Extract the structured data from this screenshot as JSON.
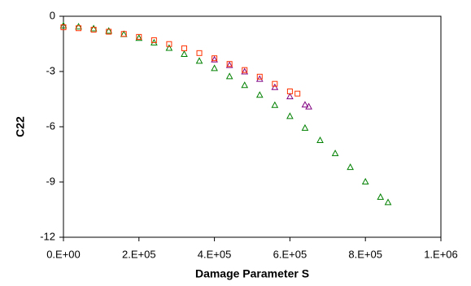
{
  "chart_data": {
    "type": "scatter",
    "x_label": "Damage Parameter S",
    "y_label": "C22",
    "xlim": [
      0,
      1000000
    ],
    "ylim": [
      -12,
      0
    ],
    "xticks": [
      {
        "value": 0,
        "label": "0.E+00"
      },
      {
        "value": 200000,
        "label": "2.E+05"
      },
      {
        "value": 400000,
        "label": "4.E+05"
      },
      {
        "value": 600000,
        "label": "6.E+05"
      },
      {
        "value": 800000,
        "label": "8.E+05"
      },
      {
        "value": 1000000,
        "label": "1.E+06"
      }
    ],
    "yticks": [
      0,
      -3,
      -6,
      -9,
      -12
    ],
    "series": [
      {
        "color": "#008000",
        "marker": "triangle",
        "x": [
          0,
          40000,
          80000,
          120000,
          160000,
          200000,
          240000,
          280000,
          320000,
          360000,
          400000,
          440000,
          480000,
          520000,
          560000,
          600000,
          640000,
          680000,
          720000,
          760000,
          800000,
          840000,
          860000
        ],
        "values": [
          -0.5,
          -0.56,
          -0.66,
          -0.79,
          -0.97,
          -1.18,
          -1.43,
          -1.72,
          -2.05,
          -2.42,
          -2.82,
          -3.26,
          -3.74,
          -4.27,
          -4.82,
          -5.42,
          -6.06,
          -6.73,
          -7.44,
          -8.19,
          -8.98,
          -9.81,
          -10.1
        ]
      },
      {
        "color": "#800080",
        "marker": "triangle",
        "x": [
          400000,
          440000,
          480000,
          520000,
          560000,
          600000,
          640000,
          650000
        ],
        "values": [
          -2.35,
          -2.65,
          -3.0,
          -3.4,
          -3.85,
          -4.35,
          -4.8,
          -4.9
        ]
      },
      {
        "color": "#ff3300",
        "marker": "square",
        "x": [
          0,
          40000,
          80000,
          120000,
          160000,
          200000,
          240000,
          280000,
          320000,
          360000,
          400000,
          440000,
          480000,
          520000,
          560000,
          600000,
          620000
        ],
        "values": [
          -0.6,
          -0.65,
          -0.73,
          -0.84,
          -0.96,
          -1.12,
          -1.3,
          -1.51,
          -1.74,
          -2.0,
          -2.28,
          -2.59,
          -2.92,
          -3.28,
          -3.67,
          -4.08,
          -4.2
        ]
      }
    ]
  }
}
